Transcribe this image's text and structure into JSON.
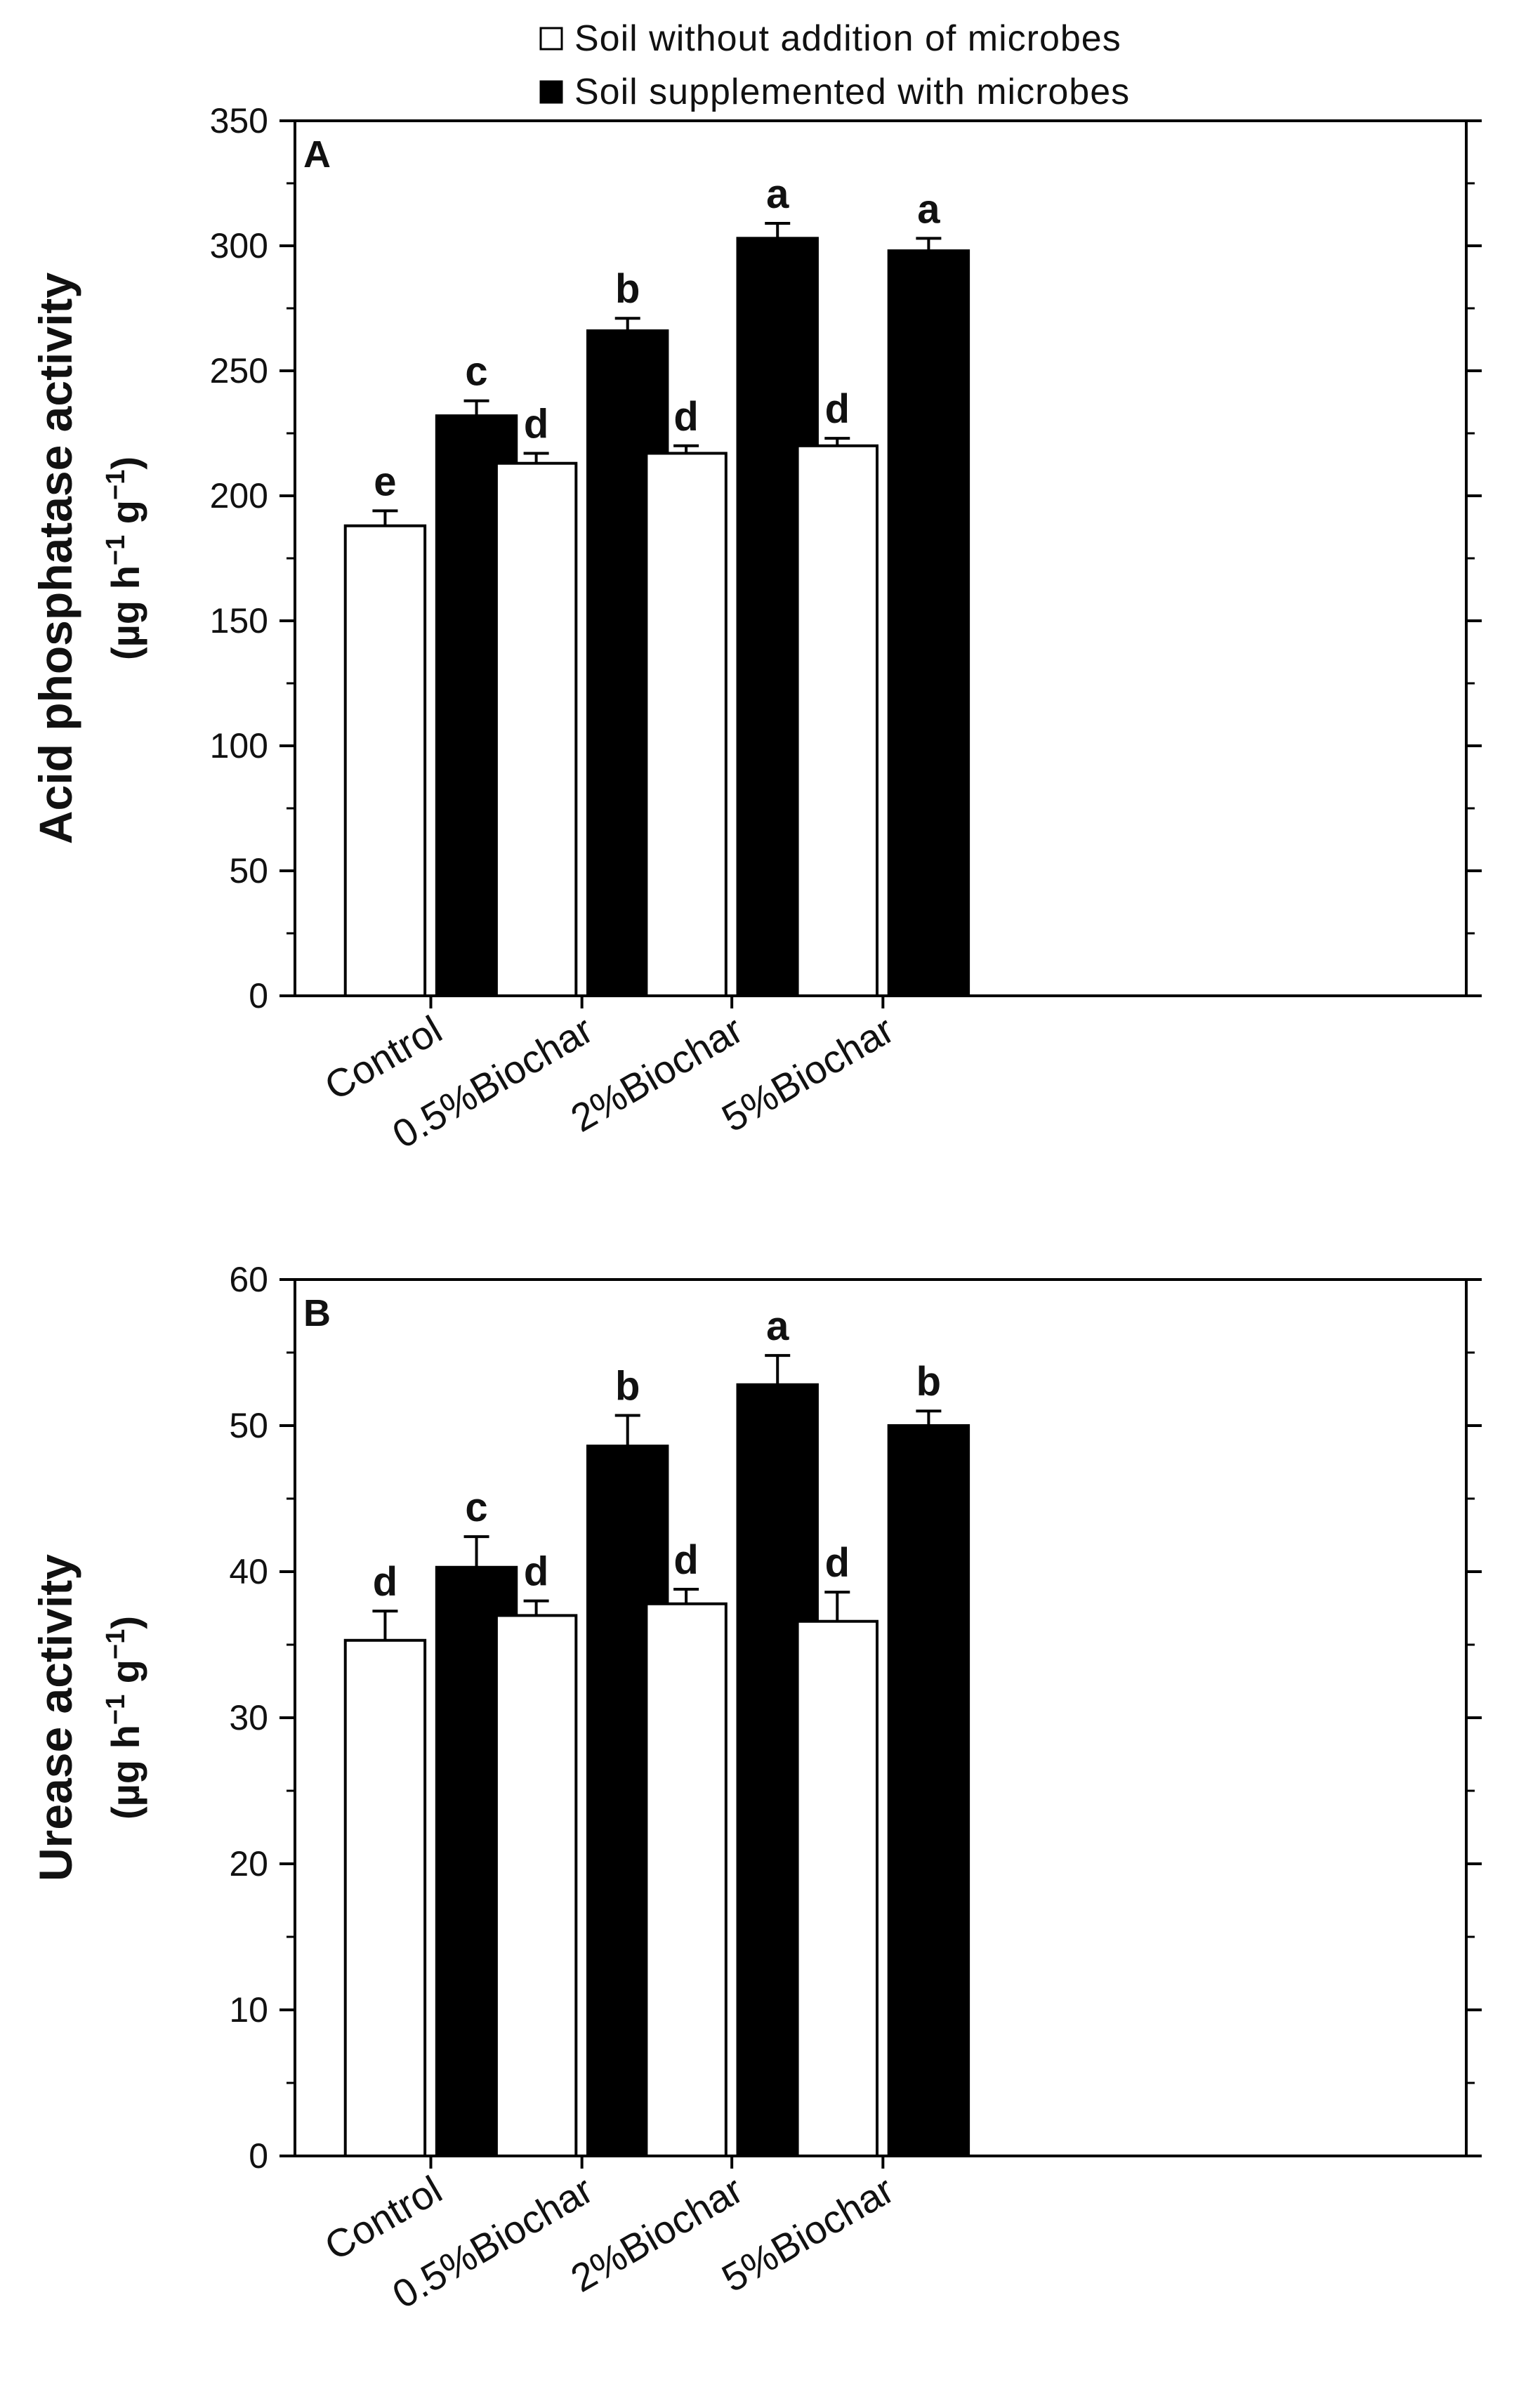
{
  "legend": [
    {
      "label": "Soil without addition of microbes",
      "fill": "#ffffff",
      "icon": "open-square-icon"
    },
    {
      "label": "Soil supplemented with microbes",
      "fill": "#000000",
      "icon": "filled-square-icon"
    }
  ],
  "colors": {
    "axis": "#000000",
    "bar_open": "#ffffff",
    "bar_filled": "#000000"
  },
  "chart_data": [
    {
      "type": "bar",
      "panel": "A",
      "title": "",
      "xlabel": "",
      "ylabel": "Acid phosphatase activity",
      "ylabel_unit_parts": [
        "(µg h",
        "−1",
        " g",
        "−1",
        ")"
      ],
      "categories": [
        "Control",
        "0.5%Biochar",
        "2%Biochar",
        "5%Biochar"
      ],
      "ylim": [
        0,
        350
      ],
      "yticks": [
        0,
        50,
        100,
        150,
        200,
        250,
        300,
        350
      ],
      "series": [
        {
          "name": "Soil without addition of microbes",
          "values": [
            188,
            213,
            217,
            220
          ],
          "errors": [
            6,
            4,
            3,
            3
          ],
          "letters": [
            "e",
            "d",
            "d",
            "d"
          ]
        },
        {
          "name": "Soil supplemented with microbes",
          "values": [
            232,
            266,
            303,
            298
          ],
          "errors": [
            6,
            5,
            6,
            5
          ],
          "letters": [
            "c",
            "b",
            "a",
            "a"
          ]
        }
      ]
    },
    {
      "type": "bar",
      "panel": "B",
      "title": "",
      "xlabel": "",
      "ylabel": "Urease activity",
      "ylabel_unit_parts": [
        "(µg h",
        "−1",
        " g",
        "−1",
        ")"
      ],
      "categories": [
        "Control",
        "0.5%Biochar",
        "2%Biochar",
        "5%Biochar"
      ],
      "ylim": [
        0,
        60
      ],
      "yticks": [
        0,
        10,
        20,
        30,
        40,
        50,
        60
      ],
      "series": [
        {
          "name": "Soil without addition of microbes",
          "values": [
            35.3,
            37.0,
            37.8,
            36.6
          ],
          "errors": [
            2.0,
            1.0,
            1.0,
            2.0
          ],
          "letters": [
            "d",
            "d",
            "d",
            "d"
          ]
        },
        {
          "name": "Soil supplemented with microbes",
          "values": [
            40.3,
            48.6,
            52.8,
            50.0
          ],
          "errors": [
            2.1,
            2.1,
            2.0,
            1.0
          ],
          "letters": [
            "c",
            "b",
            "a",
            "b"
          ]
        }
      ]
    }
  ]
}
